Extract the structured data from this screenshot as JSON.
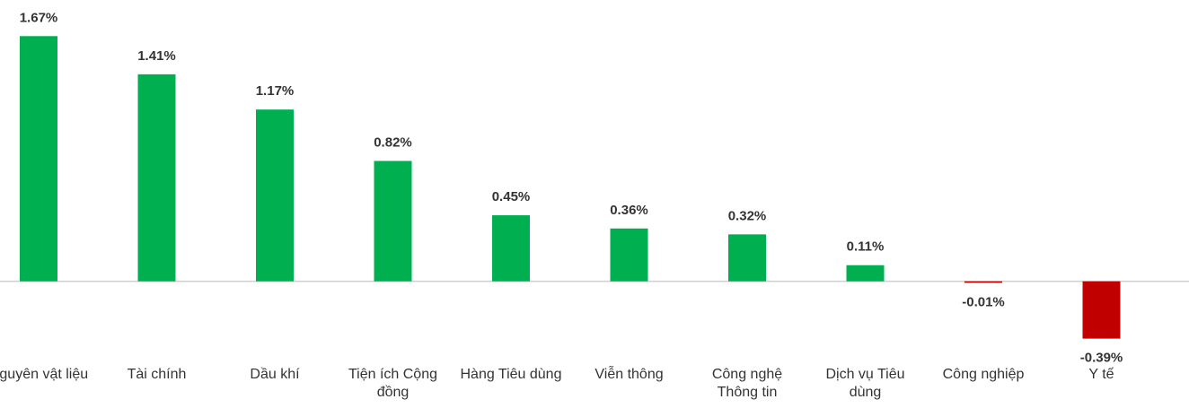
{
  "chart_data": {
    "type": "bar",
    "categories": [
      "Nguyên vật liệu",
      "Tài chính",
      "Dầu khí",
      "Tiện ích Cộng đồng",
      "Hàng Tiêu dùng",
      "Viễn thông",
      "Công nghệ Thông tin",
      "Dịch vụ Tiêu dùng",
      "Công nghiệp",
      "Y tế"
    ],
    "values": [
      1.67,
      1.41,
      1.17,
      0.82,
      0.45,
      0.36,
      0.32,
      0.11,
      -0.01,
      -0.39
    ],
    "value_labels": [
      "1.67%",
      "1.41%",
      "1.17%",
      "0.82%",
      "0.45%",
      "0.36%",
      "0.32%",
      "0.11%",
      "-0.01%",
      "-0.39%"
    ],
    "positive_color": "#00b050",
    "negative_color": "#c00000",
    "ylim": [
      -0.6,
      1.8
    ]
  }
}
